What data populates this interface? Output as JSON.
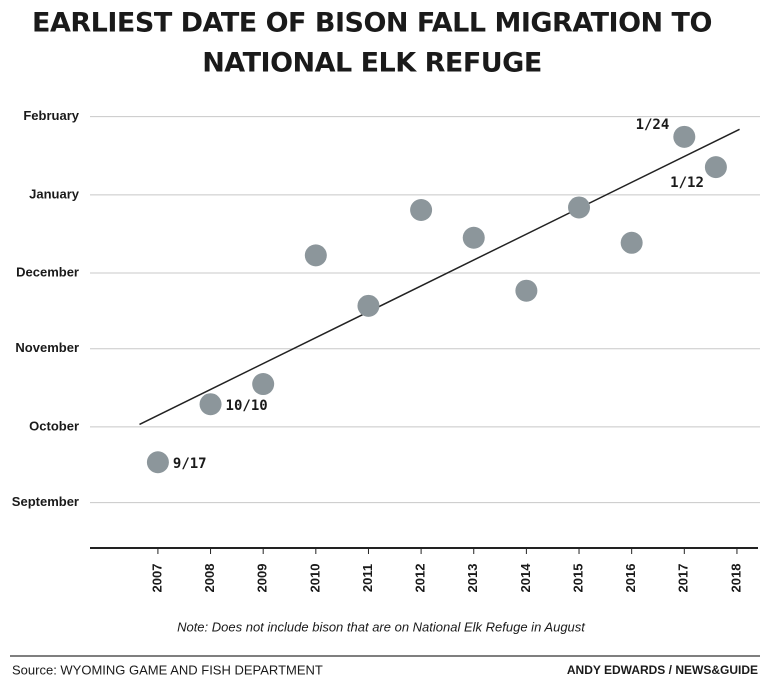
{
  "chart_data": {
    "type": "scatter",
    "title": [
      "EARLIEST DATE OF BISON FALL MIGRATION TO",
      "NATIONAL ELK REFUGE"
    ],
    "x": [
      2007,
      2008,
      2009,
      2010,
      2011,
      2012,
      2013,
      2014,
      2015,
      2016,
      2017,
      2017.6
    ],
    "values": [
      17,
      40,
      48,
      99,
      79,
      117,
      106,
      85,
      118,
      104,
      146,
      134
    ],
    "value_labels": [
      "9/17",
      "10/10",
      null,
      null,
      null,
      null,
      null,
      null,
      null,
      null,
      "1/24",
      "1/12"
    ],
    "color": "#8c969b",
    "trend_line": {
      "x": [
        2006.65,
        2018.05
      ],
      "values": [
        32,
        149
      ],
      "color": "#222222"
    },
    "xlim": [
      2005.71,
      2018.4
    ],
    "xticks": [
      2007,
      2008,
      2009,
      2010,
      2011,
      2012,
      2013,
      2014,
      2015,
      2016,
      2017,
      2018
    ],
    "ylim": [
      -17,
      161
    ],
    "yticks": [
      {
        "value": 1,
        "label": "September"
      },
      {
        "value": 31,
        "label": "October"
      },
      {
        "value": 62,
        "label": "November"
      },
      {
        "value": 92,
        "label": "December"
      },
      {
        "value": 123,
        "label": "January"
      },
      {
        "value": 154,
        "label": "February"
      }
    ],
    "grid": true,
    "note": "Note: Does not include bison that are on National Elk Refuge in August",
    "source": "Source: WYOMING GAME AND FISH DEPARTMENT",
    "credit": "ANDY EDWARDS / NEWS&GUIDE"
  }
}
